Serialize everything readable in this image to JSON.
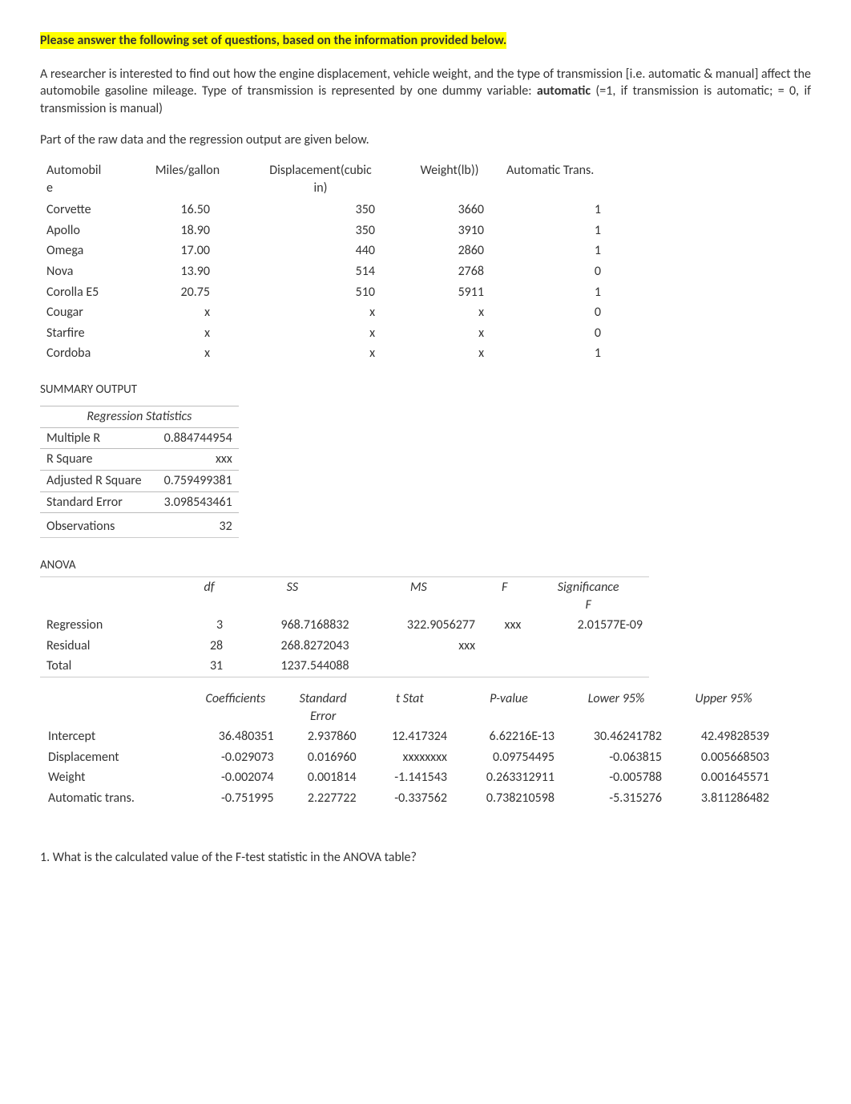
{
  "header": {
    "highlight_text": "Please answer the following set of questions, based on the information provided below."
  },
  "intro": {
    "text_before_bold": "A researcher is interested to find out how the engine displacement, vehicle weight, and the type of transmission [i.e. automatic & manual] affect the automobile gasoline mileage.   Type of transmission is represented by one dummy variable: ",
    "bold_word": "automatic",
    "text_after_bold": " (=1, if transmission is automatic; = 0, if transmission is manual)"
  },
  "subtext": "Part of the raw data and the regression output are given below.",
  "raw_table": {
    "headers": [
      "Automobile",
      "Miles/gallon",
      "Displacement(cubic in)",
      "Weight(lb))",
      "Automatic Trans."
    ],
    "col_widths": [
      "100px",
      "120px",
      "180px",
      "110px",
      "140px"
    ],
    "rows": [
      [
        "Corvette",
        "16.50",
        "350",
        "3660",
        "1"
      ],
      [
        "Apollo",
        "18.90",
        "350",
        "3910",
        "1"
      ],
      [
        "Omega",
        "17.00",
        "440",
        "2860",
        "1"
      ],
      [
        "Nova",
        "13.90",
        "514",
        "2768",
        "0"
      ],
      [
        "Corolla E5",
        "20.75",
        "510",
        "5911",
        "1"
      ],
      [
        "Cougar",
        "x",
        "x",
        "x",
        "0"
      ],
      [
        "Starfire",
        "x",
        "x",
        "x",
        "0"
      ],
      [
        "Cordoba",
        "x",
        "x",
        "x",
        "1"
      ]
    ]
  },
  "summary_title": "SUMMARY OUTPUT",
  "reg_stats": {
    "title": "Regression Statistics",
    "rows": [
      [
        "Multiple R",
        "0.884744954"
      ],
      [
        "R Square",
        "xxx"
      ],
      [
        "Adjusted R Square",
        "0.759499381"
      ],
      [
        "Standard Error",
        "3.098543461"
      ],
      [
        "Observations",
        "32"
      ]
    ]
  },
  "anova": {
    "title": "ANOVA",
    "headers": [
      "",
      "df",
      "SS",
      "MS",
      "F",
      "Significance F"
    ],
    "rows": [
      [
        "Regression",
        "3",
        "968.7168832",
        "322.9056277",
        "xxx",
        "2.01577E-09"
      ],
      [
        "Residual",
        "28",
        "268.8272043",
        "xxx",
        "",
        ""
      ],
      [
        "Total",
        "31",
        "1237.544088",
        "",
        "",
        ""
      ]
    ]
  },
  "coef": {
    "headers": [
      "",
      "Coefficients",
      "Standard Error",
      "t Stat",
      "P-value",
      "Lower 95%",
      "Upper 95%"
    ],
    "rows": [
      [
        "Intercept",
        "36.480351",
        "2.937860",
        "12.417324",
        "6.62216E-13",
        "30.46241782",
        "42.49828539"
      ],
      [
        "Displacement",
        "-0.029073",
        "0.016960",
        "xxxxxxxx",
        "0.09754495",
        "-0.063815",
        "0.005668503"
      ],
      [
        "Weight",
        "-0.002074",
        "0.001814",
        "-1.141543",
        "0.263312911",
        "-0.005788",
        "0.001645571"
      ],
      [
        "Automatic trans.",
        "-0.751995",
        "2.227722",
        "-0.337562",
        "0.738210598",
        "-5.315276",
        "3.811286482"
      ]
    ]
  },
  "question": "1. What is the calculated value of the F-test statistic in the ANOVA table?"
}
